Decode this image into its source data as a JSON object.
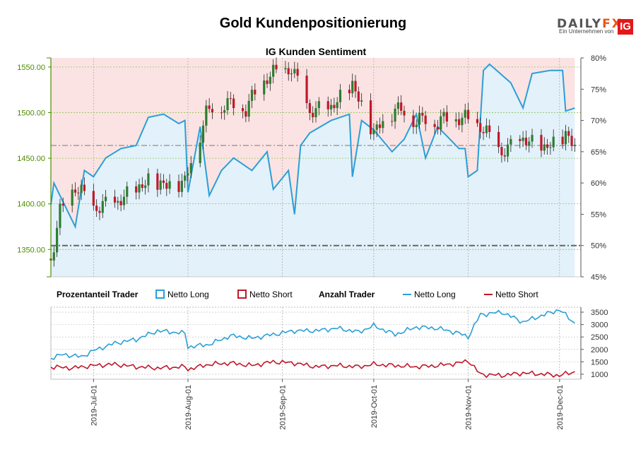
{
  "header": {
    "title": "Gold Kundenpositionierung",
    "subtitle": "IG Kunden Sentiment",
    "logo_text_a": "DAILY",
    "logo_text_b": "FX",
    "logo_sub": "Ein Unternehmen von",
    "logo_ig": "IG"
  },
  "legend": {
    "percent_title": "Prozentanteil Trader",
    "percent_long": "Netto Long",
    "percent_short": "Netto Short",
    "count_title": "Anzahl Trader",
    "count_long": "Netto Long",
    "count_short": "Netto Short"
  },
  "colors": {
    "long": "#2a9fd8",
    "short": "#c0182a",
    "long_fill": "#e3f1fa",
    "short_fill": "#fbe3e3",
    "candle_up": "#2e7d2e",
    "candle_down": "#c0182a",
    "price_axis": "#4e8a00"
  },
  "chart_data": [
    {
      "type": "candlestick",
      "title": "IG Kunden Sentiment",
      "y_left_ticks": [
        "1350.00",
        "1400.00",
        "1450.00",
        "1500.00",
        "1550.00"
      ],
      "y_left_range": [
        1320,
        1560
      ],
      "y_right_ticks": [
        "45%",
        "50%",
        "55%",
        "60%",
        "65%",
        "70%",
        "75%",
        "80%"
      ],
      "y_right_range": [
        45,
        80
      ],
      "x_ticks": [
        "2019-Jul-01",
        "2019-Aug-01",
        "2019-Sep-01",
        "2019-Oct-01",
        "2019-Nov-01",
        "2019-Dec-01"
      ],
      "reference_price": 1464,
      "reference_percent": 50,
      "price_close_points": [
        [
          "2019-Jun-17",
          1340
        ],
        [
          "2019-Jun-20",
          1390
        ],
        [
          "2019-Jun-25",
          1420
        ],
        [
          "2019-Jul-01",
          1395
        ],
        [
          "2019-Jul-08",
          1400
        ],
        [
          "2019-Jul-15",
          1415
        ],
        [
          "2019-Jul-19",
          1425
        ],
        [
          "2019-Jul-25",
          1420
        ],
        [
          "2019-Jul-31",
          1425
        ],
        [
          "2019-Aug-02",
          1445
        ],
        [
          "2019-Aug-07",
          1500
        ],
        [
          "2019-Aug-13",
          1510
        ],
        [
          "2019-Aug-20",
          1505
        ],
        [
          "2019-Aug-27",
          1540
        ],
        [
          "2019-Sep-04",
          1548
        ],
        [
          "2019-Sep-10",
          1500
        ],
        [
          "2019-Sep-17",
          1505
        ],
        [
          "2019-Sep-24",
          1530
        ],
        [
          "2019-Oct-01",
          1478
        ],
        [
          "2019-Oct-08",
          1505
        ],
        [
          "2019-Oct-15",
          1492
        ],
        [
          "2019-Oct-22",
          1490
        ],
        [
          "2019-Oct-29",
          1495
        ],
        [
          "2019-Nov-05",
          1485
        ],
        [
          "2019-Nov-12",
          1455
        ],
        [
          "2019-Nov-19",
          1470
        ],
        [
          "2019-Nov-26",
          1460
        ],
        [
          "2019-Dec-03",
          1475
        ],
        [
          "2019-Dec-06",
          1462
        ]
      ],
      "percent_long_points": [
        [
          "2019-Jun-17",
          56.5
        ],
        [
          "2019-Jun-18",
          60
        ],
        [
          "2019-Jun-20",
          58
        ],
        [
          "2019-Jun-25",
          53
        ],
        [
          "2019-Jun-28",
          62
        ],
        [
          "2019-Jul-01",
          61
        ],
        [
          "2019-Jul-05",
          64
        ],
        [
          "2019-Jul-10",
          65.5
        ],
        [
          "2019-Jul-15",
          66
        ],
        [
          "2019-Jul-19",
          70.5
        ],
        [
          "2019-Jul-24",
          71
        ],
        [
          "2019-Jul-29",
          69.5
        ],
        [
          "2019-Jul-31",
          70
        ],
        [
          "2019-Aug-01",
          58.5
        ],
        [
          "2019-Aug-05",
          69
        ],
        [
          "2019-Aug-08",
          58
        ],
        [
          "2019-Aug-12",
          62
        ],
        [
          "2019-Aug-16",
          64
        ],
        [
          "2019-Aug-22",
          62
        ],
        [
          "2019-Aug-27",
          65
        ],
        [
          "2019-Aug-29",
          59
        ],
        [
          "2019-Sep-03",
          62
        ],
        [
          "2019-Sep-05",
          55
        ],
        [
          "2019-Sep-07",
          66
        ],
        [
          "2019-Sep-10",
          68
        ],
        [
          "2019-Sep-17",
          70
        ],
        [
          "2019-Sep-23",
          71
        ],
        [
          "2019-Sep-24",
          61
        ],
        [
          "2019-Sep-27",
          70
        ],
        [
          "2019-Oct-01",
          68.5
        ],
        [
          "2019-Oct-07",
          65
        ],
        [
          "2019-Oct-11",
          67
        ],
        [
          "2019-Oct-15",
          71
        ],
        [
          "2019-Oct-18",
          64
        ],
        [
          "2019-Oct-22",
          69
        ],
        [
          "2019-Oct-29",
          65.5
        ],
        [
          "2019-Oct-31",
          65.5
        ],
        [
          "2019-Nov-01",
          61
        ],
        [
          "2019-Nov-04",
          62
        ],
        [
          "2019-Nov-06",
          78
        ],
        [
          "2019-Nov-08",
          79
        ],
        [
          "2019-Nov-15",
          76
        ],
        [
          "2019-Nov-19",
          72
        ],
        [
          "2019-Nov-22",
          77.5
        ],
        [
          "2019-Nov-28",
          78
        ],
        [
          "2019-Dec-02",
          78
        ],
        [
          "2019-Dec-03",
          71.5
        ],
        [
          "2019-Dec-06",
          72
        ]
      ]
    },
    {
      "type": "line",
      "y_ticks": [
        "1000",
        "1500",
        "2000",
        "2500",
        "3000",
        "3500"
      ],
      "y_range": [
        800,
        3700
      ],
      "series": [
        {
          "name": "Netto Long",
          "points": [
            [
              "2019-Jun-17",
              1650
            ],
            [
              "2019-Jun-21",
              1800
            ],
            [
              "2019-Jun-27",
              1700
            ],
            [
              "2019-Jul-01",
              1950
            ],
            [
              "2019-Jul-08",
              2250
            ],
            [
              "2019-Jul-15",
              2400
            ],
            [
              "2019-Jul-22",
              2750
            ],
            [
              "2019-Jul-31",
              2650
            ],
            [
              "2019-Aug-01",
              2100
            ],
            [
              "2019-Aug-08",
              2200
            ],
            [
              "2019-Aug-15",
              2550
            ],
            [
              "2019-Aug-22",
              2450
            ],
            [
              "2019-Aug-29",
              2600
            ],
            [
              "2019-Sep-05",
              2750
            ],
            [
              "2019-Sep-12",
              2750
            ],
            [
              "2019-Sep-19",
              2850
            ],
            [
              "2019-Sep-26",
              2700
            ],
            [
              "2019-Oct-01",
              2950
            ],
            [
              "2019-Oct-08",
              2600
            ],
            [
              "2019-Oct-15",
              2900
            ],
            [
              "2019-Oct-22",
              2850
            ],
            [
              "2019-Oct-29",
              2650
            ],
            [
              "2019-Nov-01",
              2500
            ],
            [
              "2019-Nov-05",
              3400
            ],
            [
              "2019-Nov-12",
              3500
            ],
            [
              "2019-Nov-19",
              3100
            ],
            [
              "2019-Nov-26",
              3400
            ],
            [
              "2019-Dec-01",
              3600
            ],
            [
              "2019-Dec-06",
              3050
            ]
          ]
        },
        {
          "name": "Netto Short",
          "points": [
            [
              "2019-Jun-17",
              1300
            ],
            [
              "2019-Jun-24",
              1250
            ],
            [
              "2019-Jul-01",
              1350
            ],
            [
              "2019-Jul-08",
              1400
            ],
            [
              "2019-Jul-15",
              1300
            ],
            [
              "2019-Jul-22",
              1250
            ],
            [
              "2019-Jul-31",
              1300
            ],
            [
              "2019-Aug-01",
              1200
            ],
            [
              "2019-Aug-08",
              1400
            ],
            [
              "2019-Aug-15",
              1450
            ],
            [
              "2019-Aug-22",
              1350
            ],
            [
              "2019-Aug-29",
              1500
            ],
            [
              "2019-Sep-05",
              1450
            ],
            [
              "2019-Sep-12",
              1300
            ],
            [
              "2019-Sep-19",
              1350
            ],
            [
              "2019-Sep-26",
              1300
            ],
            [
              "2019-Oct-01",
              1400
            ],
            [
              "2019-Oct-08",
              1350
            ],
            [
              "2019-Oct-15",
              1300
            ],
            [
              "2019-Oct-22",
              1350
            ],
            [
              "2019-Oct-29",
              1450
            ],
            [
              "2019-Nov-01",
              1550
            ],
            [
              "2019-Nov-05",
              1000
            ],
            [
              "2019-Nov-12",
              950
            ],
            [
              "2019-Nov-19",
              1050
            ],
            [
              "2019-Nov-26",
              1000
            ],
            [
              "2019-Dec-01",
              950
            ],
            [
              "2019-Dec-06",
              1100
            ]
          ]
        }
      ]
    }
  ]
}
